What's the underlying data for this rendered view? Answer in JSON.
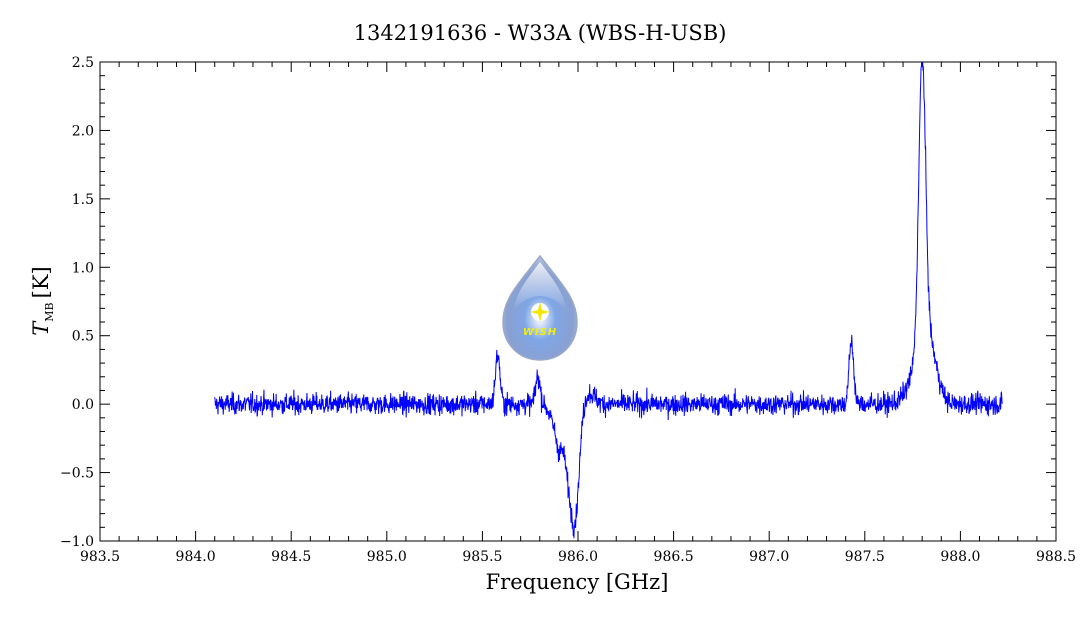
{
  "chart_data": {
    "type": "line",
    "title": "1342191636 - W33A (WBS-H-USB)",
    "xlabel": "Frequency [GHz]",
    "ylabel_symbol": "T",
    "ylabel_subscript": "MB",
    "ylabel_unit": "[K]",
    "xlim": [
      983.5,
      988.5
    ],
    "ylim": [
      -1.0,
      2.5
    ],
    "xticks": [
      "983.5",
      "984.0",
      "984.5",
      "985.0",
      "985.5",
      "986.0",
      "986.5",
      "987.0",
      "987.5",
      "988.0",
      "988.5"
    ],
    "yticks": [
      "-1.0",
      "-0.5",
      "0.0",
      "0.5",
      "1.0",
      "1.5",
      "2.0",
      "2.5"
    ],
    "grid": false,
    "series": [
      {
        "color": "#0000ff",
        "x_range": [
          984.1,
          988.22
        ],
        "noise_rms": 0.06,
        "features": [
          {
            "x": 985.58,
            "amp": 0.36,
            "width": 0.012
          },
          {
            "x": 985.79,
            "amp": 0.2,
            "width": 0.012
          },
          {
            "x": 985.87,
            "amp": -0.12,
            "width": 0.02
          },
          {
            "x": 985.9,
            "amp": -0.22,
            "width": 0.015
          },
          {
            "x": 985.96,
            "amp": -0.6,
            "width": 0.03
          },
          {
            "x": 985.99,
            "amp": -0.45,
            "width": 0.02
          },
          {
            "x": 986.06,
            "amp": 0.08,
            "width": 0.03
          },
          {
            "x": 987.43,
            "amp": 0.46,
            "width": 0.012
          },
          {
            "x": 987.8,
            "amp": 2.1,
            "width": 0.018
          },
          {
            "x": 987.84,
            "amp": 0.35,
            "width": 0.04
          },
          {
            "x": 987.78,
            "amp": 0.25,
            "width": 0.05
          }
        ]
      }
    ],
    "logo": {
      "text": "WISH"
    }
  }
}
